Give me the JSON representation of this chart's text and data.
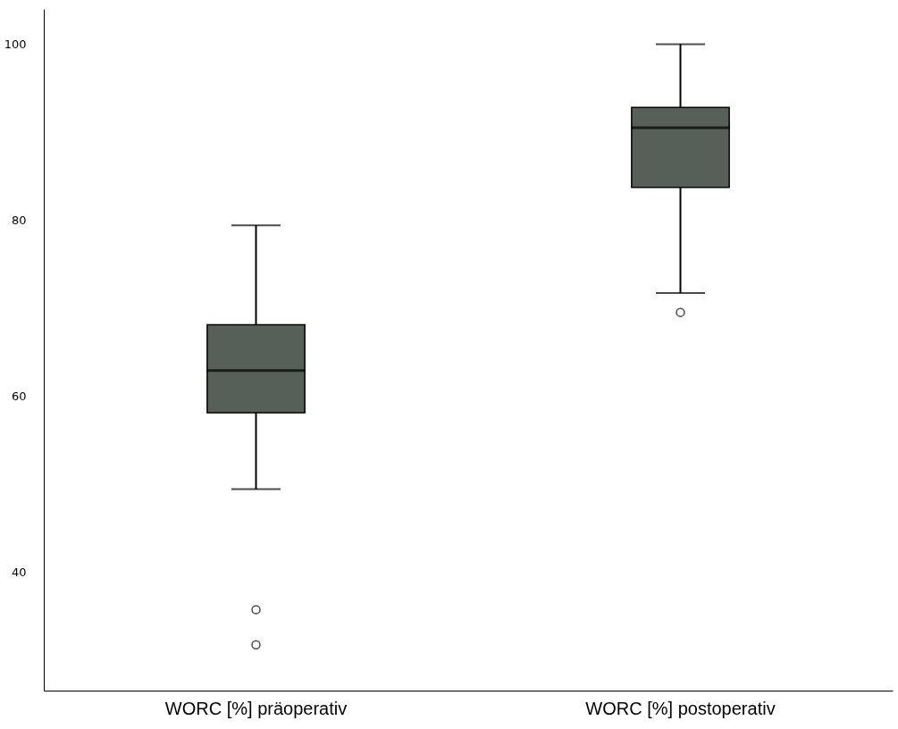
{
  "chart_data": {
    "type": "box",
    "categories": [
      "WORC [%] präoperativ",
      "WORC [%] postoperativ"
    ],
    "boxes": [
      {
        "low": 49.4,
        "q1": 58.1,
        "median": 62.9,
        "q3": 68.1,
        "high": 79.4,
        "outliers": [
          35.7,
          31.7
        ]
      },
      {
        "low": 71.7,
        "q1": 83.7,
        "median": 90.5,
        "q3": 92.8,
        "high": 100,
        "outliers": [
          69.5
        ]
      }
    ],
    "colors": [
      "#566059",
      "#566059"
    ],
    "ylim": [
      26.5,
      104
    ],
    "yticks": [
      40,
      60,
      80,
      100
    ],
    "grid": false
  }
}
